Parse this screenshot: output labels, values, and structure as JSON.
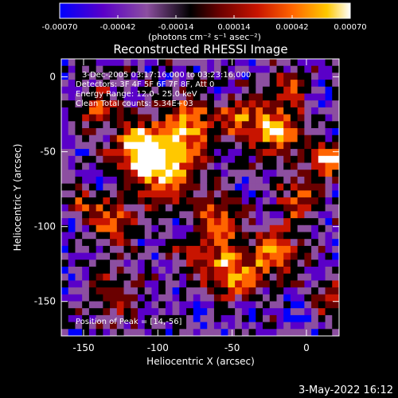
{
  "chart_data": {
    "type": "heatmap",
    "title": "Reconstructed RHESSI Image",
    "xlabel": "Heliocentric X (arcsec)",
    "ylabel": "Heliocentric Y (arcsec)",
    "xlim": [
      -165,
      22
    ],
    "ylim": [
      -173,
      12
    ],
    "xticks": [
      -150,
      -100,
      -50,
      0
    ],
    "yticks": [
      -150,
      -100,
      -50,
      0
    ],
    "colorbar": {
      "range": [
        -0.0007,
        0.0007
      ],
      "ticks": [
        "-0.00070",
        "-0.00042",
        "-0.00014",
        "0.00014",
        "0.00042",
        "0.00070"
      ],
      "unit_label": "(photons cm⁻² s⁻¹ asec⁻²)"
    },
    "annotations": [
      "3-Dec-2005 03:17:16.000 to 03:23:16.000",
      "Detectors: 3F 4F 5F 6F 7F 8F, Att 0",
      "Energy Range: 12.0 - 25.0 keV",
      "Clean     Total counts: 5.34E+03"
    ],
    "peak_label": "Position of Peak = [14,-56]",
    "peak": {
      "x": 14,
      "y": -56
    },
    "footer_date": "3-May-2022 16:12",
    "colormap": [
      "#0000ff",
      "#5a00c8",
      "#8c4fa0",
      "#000000",
      "#6a0000",
      "#c81400",
      "#ff6400",
      "#ffc800",
      "#ffffff"
    ],
    "grid": false,
    "legend": "colorbar-top"
  }
}
